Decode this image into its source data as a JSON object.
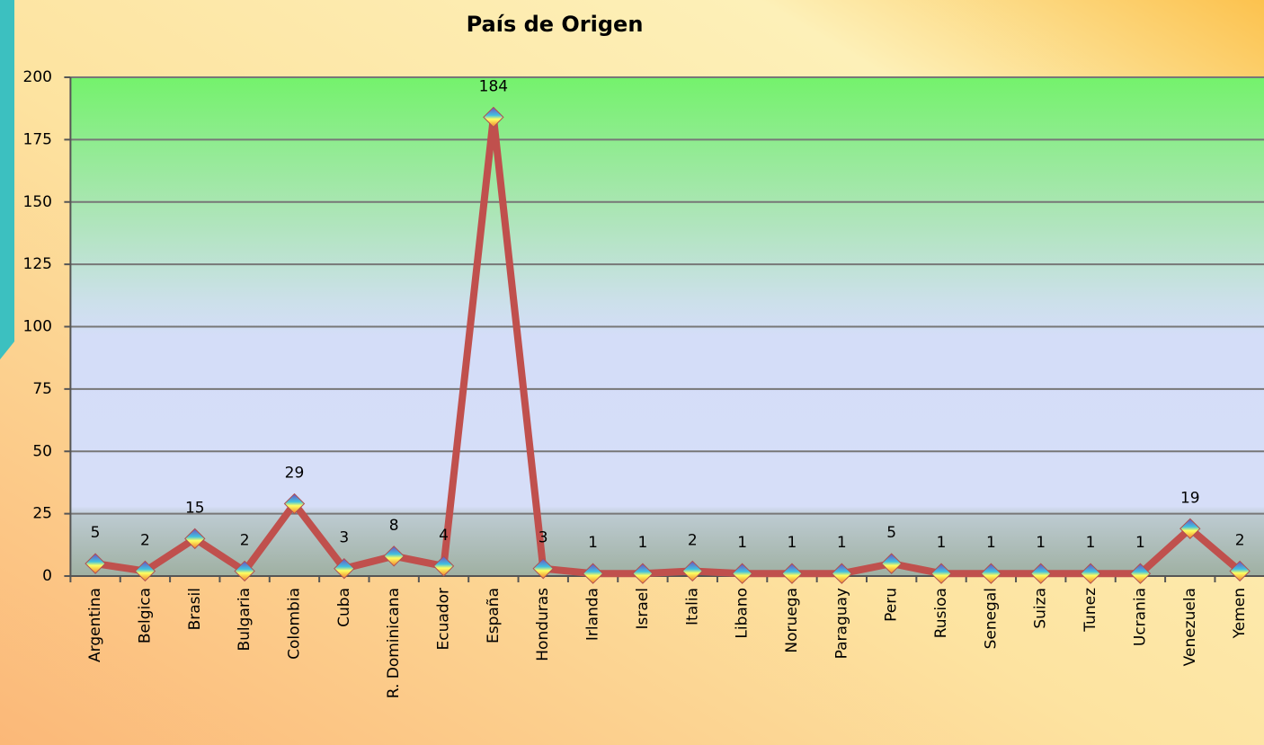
{
  "chart_data": {
    "type": "line",
    "title": "País de Origen",
    "categories": [
      "Argentina",
      "Belgica",
      "Brasil",
      "Bulgaria",
      "Colombia",
      "Cuba",
      "R. Dominicana",
      "Ecuador",
      "España",
      "Honduras",
      "Irlanda",
      "Israel",
      "Italia",
      "Libano",
      "Noruega",
      "Paraguay",
      "Peru",
      "Rusioa",
      "Senegal",
      "Suiza",
      "Tunez",
      "Ucrania",
      "Venezuela",
      "Yemen"
    ],
    "values": [
      5,
      2,
      15,
      2,
      29,
      3,
      8,
      4,
      184,
      3,
      1,
      1,
      2,
      1,
      1,
      1,
      5,
      1,
      1,
      1,
      1,
      1,
      19,
      2
    ],
    "color": "#c0504d",
    "ylim": [
      0,
      200
    ],
    "yticks": [
      0,
      25,
      50,
      75,
      100,
      125,
      150,
      175,
      200
    ],
    "grid": true
  }
}
